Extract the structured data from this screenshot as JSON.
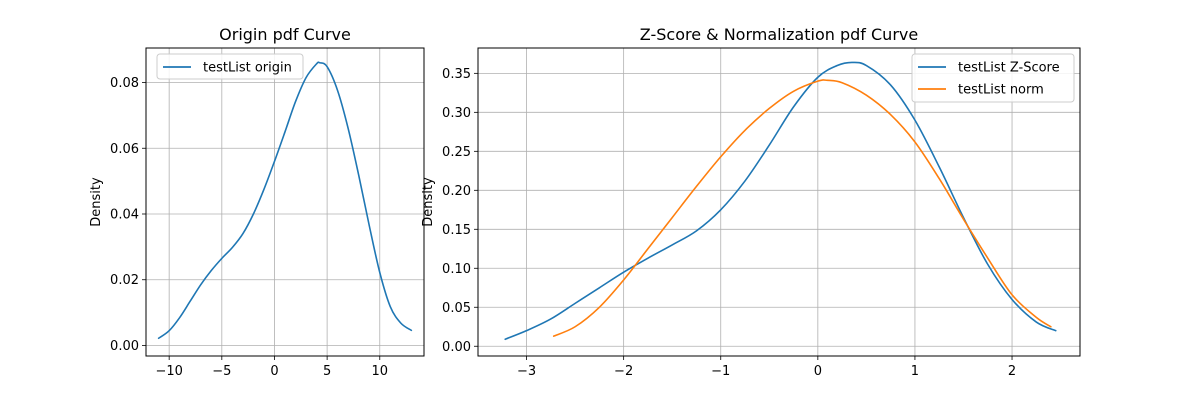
{
  "chart_data": [
    {
      "type": "line",
      "title": "Origin pdf Curve",
      "xlabel": "",
      "ylabel": "Density",
      "xlim": [
        -12.2,
        14.2
      ],
      "ylim": [
        -0.0032,
        0.0905
      ],
      "xticks": [
        -10,
        -5,
        0,
        5,
        10
      ],
      "xtick_labels": [
        "−10",
        "−5",
        "0",
        "5",
        "10"
      ],
      "yticks": [
        0.0,
        0.02,
        0.04,
        0.06,
        0.08
      ],
      "ytick_labels": [
        "0.00",
        "0.02",
        "0.04",
        "0.06",
        "0.08"
      ],
      "grid": true,
      "legend_position": "upper-left",
      "series": [
        {
          "name": "testList origin",
          "color": "#1f77b4",
          "x": [
            -11.0,
            -10.0,
            -9.0,
            -8.0,
            -7.0,
            -6.0,
            -5.0,
            -4.0,
            -3.0,
            -2.0,
            -1.0,
            0.0,
            1.0,
            2.0,
            3.0,
            4.0,
            4.3,
            5.0,
            6.0,
            7.0,
            8.0,
            9.0,
            10.0,
            11.0,
            12.0,
            13.0
          ],
          "y": [
            0.0022,
            0.0045,
            0.0085,
            0.0135,
            0.0185,
            0.0228,
            0.0265,
            0.0298,
            0.034,
            0.04,
            0.0475,
            0.056,
            0.065,
            0.0742,
            0.0815,
            0.0857,
            0.086,
            0.0848,
            0.0775,
            0.066,
            0.0518,
            0.0365,
            0.0222,
            0.0118,
            0.0068,
            0.0046
          ]
        }
      ]
    },
    {
      "type": "line",
      "title": "Z-Score & Normalization pdf Curve",
      "xlabel": "",
      "ylabel": "Density",
      "xlim": [
        -3.5,
        2.7
      ],
      "ylim": [
        -0.0125,
        0.3825
      ],
      "xticks": [
        -3,
        -2,
        -1,
        0,
        1,
        2
      ],
      "xtick_labels": [
        "−3",
        "−2",
        "−1",
        "0",
        "1",
        "2"
      ],
      "yticks": [
        0.0,
        0.05,
        0.1,
        0.15,
        0.2,
        0.25,
        0.3,
        0.35
      ],
      "ytick_labels": [
        "0.00",
        "0.05",
        "0.10",
        "0.15",
        "0.20",
        "0.25",
        "0.30",
        "0.35"
      ],
      "grid": true,
      "legend_position": "upper-right",
      "series": [
        {
          "name": "testList Z-Score",
          "color": "#1f77b4",
          "x": [
            -3.22,
            -3.0,
            -2.75,
            -2.5,
            -2.25,
            -2.0,
            -1.75,
            -1.5,
            -1.25,
            -1.0,
            -0.75,
            -0.5,
            -0.25,
            0.0,
            0.2,
            0.35,
            0.5,
            0.75,
            1.0,
            1.25,
            1.5,
            1.75,
            2.0,
            2.25,
            2.45
          ],
          "y": [
            0.009,
            0.02,
            0.035,
            0.055,
            0.075,
            0.095,
            0.113,
            0.13,
            0.148,
            0.175,
            0.212,
            0.258,
            0.307,
            0.345,
            0.36,
            0.364,
            0.36,
            0.335,
            0.29,
            0.23,
            0.165,
            0.105,
            0.06,
            0.031,
            0.02
          ]
        },
        {
          "name": "testList norm",
          "color": "#ff7f0e",
          "x": [
            -2.72,
            -2.5,
            -2.25,
            -2.0,
            -1.75,
            -1.5,
            -1.25,
            -1.0,
            -0.75,
            -0.5,
            -0.25,
            0.0,
            0.1,
            0.25,
            0.5,
            0.75,
            1.0,
            1.25,
            1.5,
            1.75,
            2.0,
            2.25,
            2.4
          ],
          "y": [
            0.013,
            0.025,
            0.05,
            0.085,
            0.125,
            0.165,
            0.205,
            0.243,
            0.277,
            0.305,
            0.327,
            0.34,
            0.341,
            0.338,
            0.322,
            0.297,
            0.262,
            0.215,
            0.163,
            0.113,
            0.066,
            0.037,
            0.025
          ]
        }
      ]
    }
  ]
}
